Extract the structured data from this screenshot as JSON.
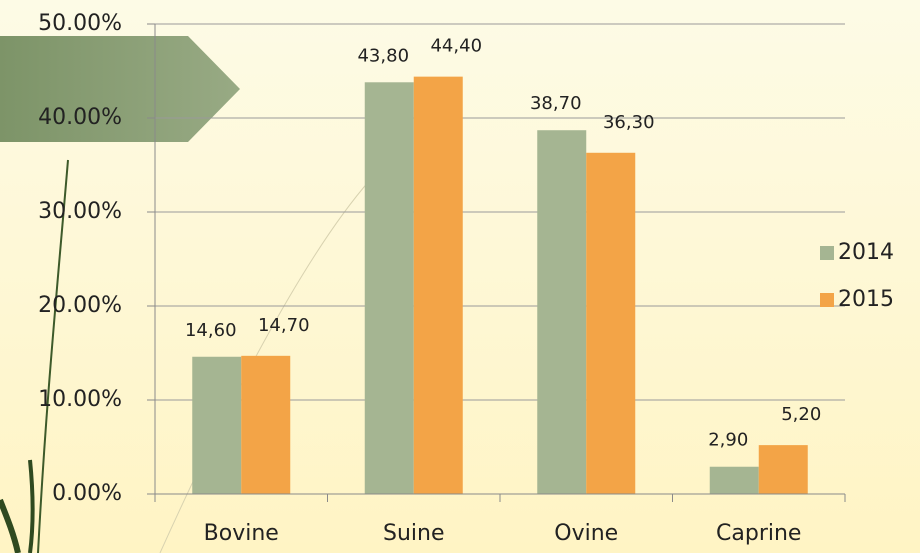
{
  "chart_data": {
    "type": "bar",
    "categories": [
      "Bovine",
      "Suine",
      "Ovine",
      "Caprine"
    ],
    "series": [
      {
        "name": "2014",
        "color": "#a5b592",
        "values": [
          14.6,
          43.8,
          38.7,
          2.9
        ],
        "value_labels": [
          "14,60",
          "43,80",
          "38,70",
          "2,90"
        ]
      },
      {
        "name": "2015",
        "color": "#f3a447",
        "values": [
          14.7,
          44.4,
          36.3,
          5.2
        ],
        "value_labels": [
          "14,70",
          "44,40",
          "36,30",
          "5,20"
        ]
      }
    ],
    "ylim": [
      0,
      50
    ],
    "yticks": [
      {
        "value": 0,
        "label": "0.00%"
      },
      {
        "value": 10,
        "label": "10.00%"
      },
      {
        "value": 20,
        "label": "20.00%"
      },
      {
        "value": 30,
        "label": "30.00%"
      },
      {
        "value": 40,
        "label": "40.00%"
      },
      {
        "value": 50,
        "label": "50.00%"
      }
    ],
    "grid": true,
    "legend": "right"
  }
}
